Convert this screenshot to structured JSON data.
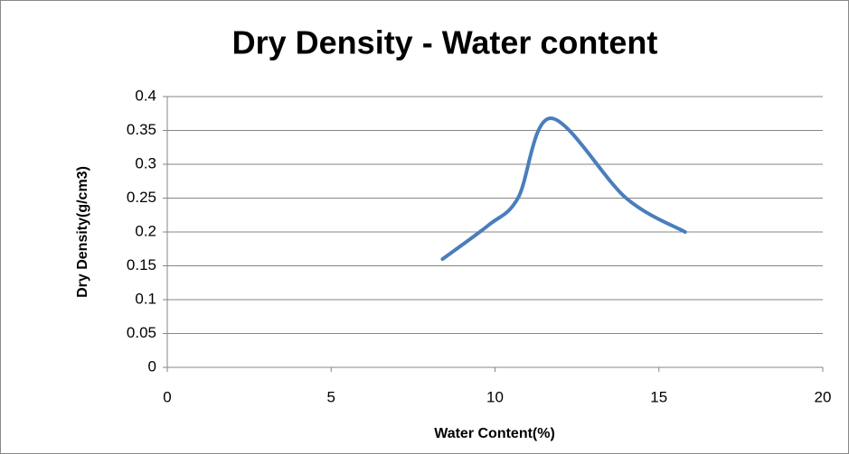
{
  "chart_data": {
    "type": "scatter_smooth_line",
    "title": "Dry Density - Water content",
    "x_label": "Water Content(%)",
    "y_label": "Dry Density(g/cm3)",
    "series": [
      {
        "name": "Dry Density",
        "color": "#4a7ebb",
        "x": [
          8.4,
          9.8,
          10.7,
          11.7,
          14.0,
          15.8
        ],
        "values": [
          0.16,
          0.21,
          0.25,
          0.368,
          0.25,
          0.2
        ]
      }
    ],
    "xlim": [
      0,
      20
    ],
    "xticks": [
      0,
      5,
      10,
      15,
      20
    ],
    "ylim": [
      0,
      0.4
    ],
    "yticks": [
      0,
      0.05,
      0.1,
      0.15,
      0.2,
      0.25,
      0.3,
      0.35,
      0.4
    ],
    "grid": true
  }
}
